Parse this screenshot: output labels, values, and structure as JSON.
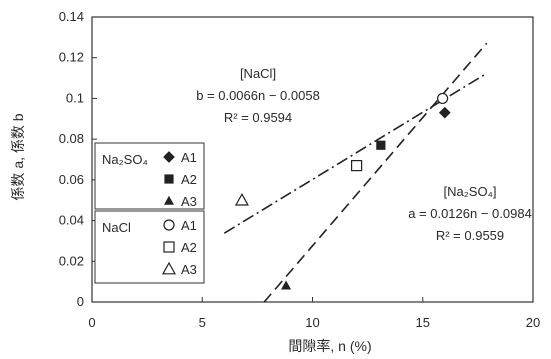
{
  "chart_data": {
    "type": "scatter",
    "xlabel": "間隙率, n (%)",
    "ylabel": "係数 a, 係数 b",
    "xlim": [
      0,
      20
    ],
    "ylim": [
      0,
      0.14
    ],
    "x_ticks": [
      "0",
      "5",
      "10",
      "15",
      "20"
    ],
    "y_ticks": [
      "0",
      "0.02",
      "0.04",
      "0.06",
      "0.08",
      "0.1",
      "0.12",
      "0.14"
    ],
    "grid": false,
    "legend_position": "left",
    "legend": {
      "groups": [
        {
          "name": "Na₂SO₄",
          "items": [
            {
              "label": "A1",
              "marker": "diamond-filled"
            },
            {
              "label": "A2",
              "marker": "square-filled"
            },
            {
              "label": "A3",
              "marker": "triangle-filled"
            }
          ]
        },
        {
          "name": "NaCl",
          "items": [
            {
              "label": "A1",
              "marker": "circle-open"
            },
            {
              "label": "A2",
              "marker": "square-open"
            },
            {
              "label": "A3",
              "marker": "triangle-open"
            }
          ]
        }
      ]
    },
    "series": [
      {
        "name": "Na₂SO₄ A1",
        "marker": "diamond-filled",
        "points": [
          [
            16.0,
            0.093
          ]
        ]
      },
      {
        "name": "Na₂SO₄ A2",
        "marker": "square-filled",
        "points": [
          [
            13.1,
            0.077
          ]
        ]
      },
      {
        "name": "Na₂SO₄ A3",
        "marker": "triangle-filled",
        "points": [
          [
            8.8,
            0.008
          ]
        ]
      },
      {
        "name": "NaCl A1",
        "marker": "circle-open",
        "points": [
          [
            15.9,
            0.1
          ]
        ]
      },
      {
        "name": "NaCl A2",
        "marker": "square-open",
        "points": [
          [
            12.0,
            0.067
          ]
        ]
      },
      {
        "name": "NaCl A3",
        "marker": "triangle-open",
        "points": [
          [
            6.8,
            0.05
          ]
        ]
      }
    ],
    "fit_lines": [
      {
        "group": "NaCl",
        "style": "dash-dot",
        "slope": 0.0066,
        "intercept": -0.0058,
        "x_range": [
          6.0,
          17.8
        ]
      },
      {
        "group": "Na₂SO₄",
        "style": "dashed",
        "slope": 0.0126,
        "intercept": -0.0984,
        "x_range": [
          7.8,
          17.9
        ]
      }
    ],
    "annotations": [
      {
        "id": "nacl",
        "lines": [
          "[NaCl]",
          "b = 0.0066n − 0.0058",
          "R² = 0.9594"
        ]
      },
      {
        "id": "na2so4",
        "lines": [
          "[Na₂SO₄]",
          "a = 0.0126n − 0.0984",
          "R² = 0.9559"
        ]
      }
    ]
  }
}
